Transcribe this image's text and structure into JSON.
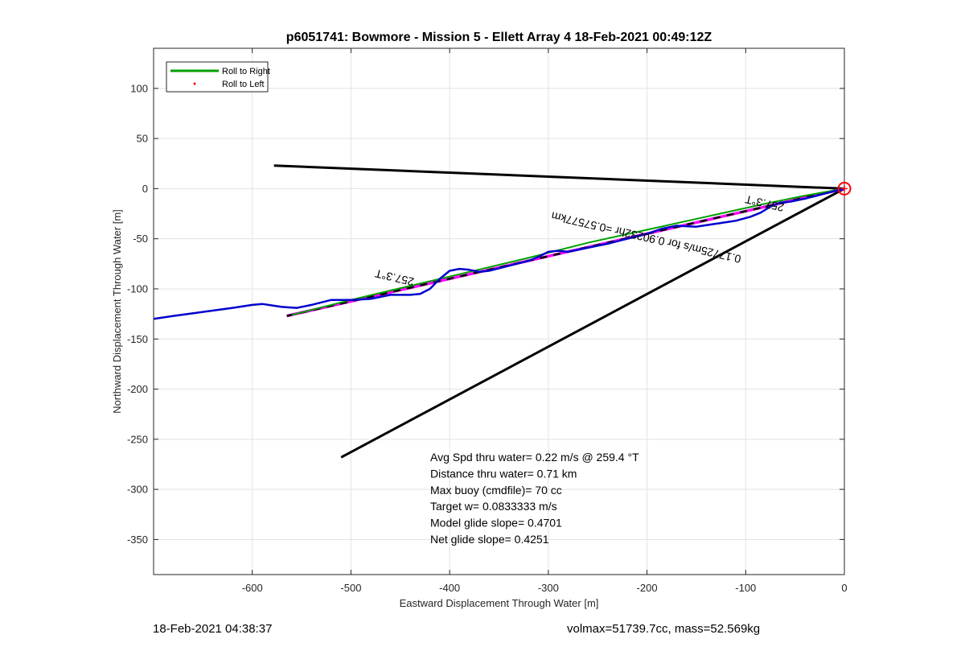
{
  "chart_data": {
    "type": "line",
    "title": "p6051741: Bowmore - Mission 5 - Ellett Array 4 18-Feb-2021 00:49:12Z",
    "xlabel": "Eastward Displacement Through Water [m]",
    "ylabel": "Northward Displacement Through Water [m]",
    "xlim": [
      -700,
      0
    ],
    "ylim": [
      -385,
      140
    ],
    "xticks": [
      -600,
      -500,
      -400,
      -300,
      -200,
      -100,
      0
    ],
    "yticks": [
      100,
      50,
      0,
      -50,
      -100,
      -150,
      -200,
      -250,
      -300,
      -350
    ],
    "grid": true,
    "legend": {
      "placement": "top-left",
      "entries": [
        {
          "label": "Roll to Right",
          "color": "#00a000",
          "style": "line"
        },
        {
          "label": "Roll to Left",
          "color": "#ff0000",
          "style": "dot"
        }
      ]
    },
    "series": [
      {
        "name": "Roll to Right",
        "color": "#00a000",
        "x": [
          -560,
          -500,
          -440,
          -380,
          -320,
          -260,
          -200,
          -140,
          -80,
          -40,
          0
        ],
        "y": [
          -126,
          -111,
          -97,
          -83,
          -69,
          -54,
          -41,
          -28,
          -15,
          -7,
          0
        ]
      },
      {
        "color": "#0000cc",
        "x": [
          -700,
          -680,
          -650,
          -620,
          -600,
          -590,
          -570,
          -555,
          -540,
          -520,
          -500,
          -480,
          -460,
          -440,
          -430,
          -420,
          -410,
          -400,
          -390,
          -380,
          -370,
          -360,
          -340,
          -320,
          -310,
          -300,
          -290,
          -280,
          -260,
          -240,
          -220,
          -200,
          -185,
          -170,
          -150,
          -130,
          -110,
          -95,
          -85,
          -75,
          -65,
          -55,
          -40,
          -20,
          0
        ],
        "y": [
          -130,
          -127,
          -123,
          -119,
          -116,
          -115,
          -118,
          -119,
          -116,
          -111,
          -111,
          -110,
          -106,
          -106,
          -105,
          -100,
          -90,
          -82,
          -80,
          -81,
          -83,
          -82,
          -77,
          -72,
          -68,
          -63,
          -62,
          -63,
          -59,
          -55,
          -50,
          -45,
          -40,
          -37,
          -38,
          -35,
          -32,
          -28,
          -24,
          -18,
          -14,
          -13,
          -10,
          -5,
          0
        ]
      },
      {
        "color": "#ff00ff",
        "x": [
          -565,
          0
        ],
        "y": [
          -127,
          0
        ]
      },
      {
        "color": "#000000",
        "x": [
          -565,
          0
        ],
        "y": [
          -127,
          0
        ]
      },
      {
        "color": "#000000",
        "x": [
          -578,
          0
        ],
        "y": [
          23,
          0
        ]
      },
      {
        "color": "#000000",
        "x": [
          -510,
          0
        ],
        "y": [
          -268,
          0
        ]
      }
    ],
    "annotations": [
      {
        "text": "257.3°T",
        "x": -455,
        "y": -85,
        "rotation": 193
      },
      {
        "text": "257.3°T",
        "x": -80,
        "y": -11,
        "rotation": 193
      },
      {
        "text": "0.17725m/s for 0.90232hr =0.57577km",
        "x": -200,
        "y": -45,
        "rotation": 193
      }
    ],
    "info_lines": [
      "Avg Spd thru water=  0.22 m/s @ 259.4 °T",
      "Distance thru water=  0.71 km",
      "Max buoy (cmdfile)= 70 cc",
      "Target w= 0.0833333 m/s",
      "Model glide slope= 0.4701",
      "Net glide slope= 0.4251"
    ],
    "end_marker": {
      "x": 0,
      "y": 0,
      "color": "#ff0000"
    }
  },
  "footer": {
    "timestamp": "18-Feb-2021 04:38:37",
    "stats": "volmax=51739.7cc, mass=52.569kg"
  }
}
